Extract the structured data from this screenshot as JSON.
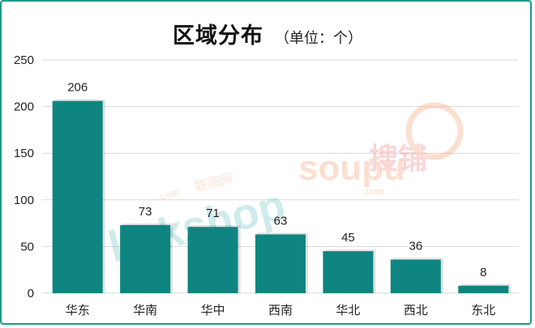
{
  "chart_data": {
    "type": "bar",
    "title": "区域分布",
    "subtitle": "（单位：个）",
    "categories": [
      "华东",
      "华南",
      "华中",
      "西南",
      "华北",
      "西北",
      "东北"
    ],
    "values": [
      206,
      73,
      71,
      63,
      45,
      36,
      8
    ],
    "data_labels": [
      "206",
      "73",
      "71",
      "63",
      "45",
      "36",
      "8"
    ],
    "ylim": [
      0,
      250
    ],
    "yticks": [
      0,
      50,
      100,
      150,
      200,
      250
    ],
    "ytick_labels": [
      "0",
      "50",
      "100",
      "150",
      "200",
      "250"
    ],
    "grid": true,
    "legend": "none",
    "bar_color": "#0e8580",
    "grid_color": "#d9d9d9"
  },
  "watermarks": {
    "linkshop": "linkshop",
    "linkshop_com": ".com",
    "linkshop_cn": "联商网",
    "soupu": "soupu",
    "soupu_com": ".com",
    "soupu_cn": "搜铺"
  }
}
